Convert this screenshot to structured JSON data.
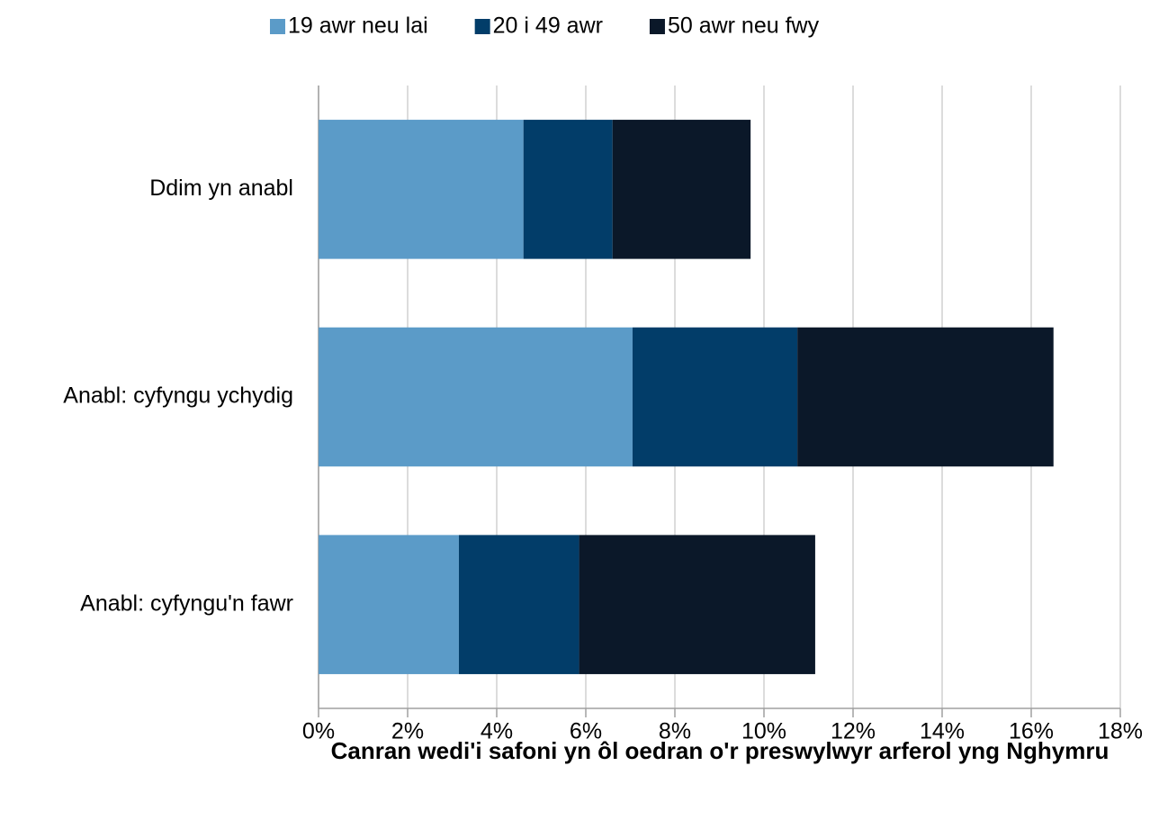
{
  "chart_data": {
    "type": "stacked_bar_horizontal",
    "categories": [
      "Ddim yn anabl",
      "Anabl: cyfyngu ychydig",
      "Anabl: cyfyngu'n fawr"
    ],
    "series": [
      {
        "name": "19 awr neu lai",
        "color": "#5b9bc8",
        "values": [
          4.6,
          7.05,
          3.15
        ]
      },
      {
        "name": "20 i 49 awr",
        "color": "#023d69",
        "values": [
          2.0,
          3.7,
          2.7
        ]
      },
      {
        "name": "50 awr neu fwy",
        "color": "#0b1829",
        "values": [
          3.1,
          5.75,
          5.3
        ]
      }
    ],
    "xlim": [
      0,
      18
    ],
    "xticks": [
      {
        "value": 0,
        "label": "0%"
      },
      {
        "value": 2,
        "label": "2%"
      },
      {
        "value": 4,
        "label": "4%"
      },
      {
        "value": 6,
        "label": "6%"
      },
      {
        "value": 8,
        "label": "8%"
      },
      {
        "value": 10,
        "label": "10%"
      },
      {
        "value": 12,
        "label": "12%"
      },
      {
        "value": 14,
        "label": "14%"
      },
      {
        "value": 16,
        "label": "16%"
      },
      {
        "value": 18,
        "label": "18%"
      }
    ],
    "x_label": "Canran wedi'i safoni yn ôl oedran o'r preswylwyr arferol yng Nghymru",
    "grid": true,
    "legend": "top"
  }
}
